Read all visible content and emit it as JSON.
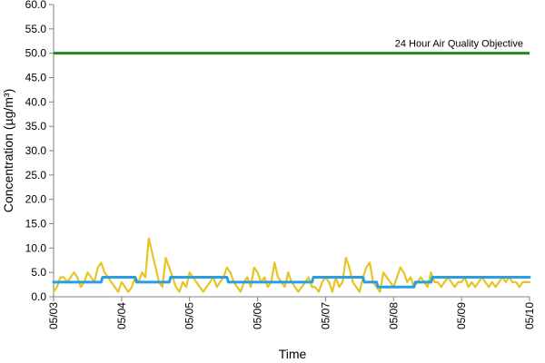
{
  "chart_data": {
    "type": "line",
    "xlabel": "Time",
    "ylabel": "Concentration (µg/m³)",
    "ylim": [
      0,
      60
    ],
    "y_ticks": [
      "0.0",
      "5.0",
      "10.0",
      "15.0",
      "20.0",
      "25.0",
      "30.0",
      "35.0",
      "40.0",
      "45.0",
      "50.0",
      "55.0",
      "60.0"
    ],
    "y_tick_values": [
      0,
      5,
      10,
      15,
      20,
      25,
      30,
      35,
      40,
      45,
      50,
      55,
      60
    ],
    "x_ticks": [
      "05/03",
      "05/04",
      "05/05",
      "05/06",
      "05/07",
      "05/08",
      "05/09",
      "05/10"
    ],
    "grid": false,
    "annotation": {
      "text": "24 Hour Air Quality Objective",
      "value": 50,
      "color": "#1f8a1f"
    },
    "series": [
      {
        "color": "#e8c423",
        "x_day_fraction": [
          0,
          0.05,
          0.1,
          0.15,
          0.2,
          0.25,
          0.3,
          0.35,
          0.4,
          0.45,
          0.5,
          0.55,
          0.6,
          0.65,
          0.7,
          0.75,
          0.8,
          0.85,
          0.9,
          0.95,
          1.0,
          1.05,
          1.1,
          1.15,
          1.2,
          1.25,
          1.3,
          1.35,
          1.4,
          1.45,
          1.5,
          1.55,
          1.6,
          1.65,
          1.7,
          1.75,
          1.8,
          1.85,
          1.9,
          1.95,
          2.0,
          2.05,
          2.1,
          2.15,
          2.2,
          2.25,
          2.3,
          2.35,
          2.4,
          2.45,
          2.5,
          2.55,
          2.6,
          2.65,
          2.7,
          2.75,
          2.8,
          2.85,
          2.9,
          2.95,
          3.0,
          3.05,
          3.1,
          3.15,
          3.2,
          3.25,
          3.3,
          3.35,
          3.4,
          3.45,
          3.5,
          3.55,
          3.6,
          3.65,
          3.7,
          3.75,
          3.8,
          3.85,
          3.9,
          3.95,
          4.0,
          4.05,
          4.1,
          4.15,
          4.2,
          4.25,
          4.3,
          4.35,
          4.4,
          4.45,
          4.5,
          4.55,
          4.6,
          4.65,
          4.7,
          4.75,
          4.8,
          4.85,
          4.9,
          4.95,
          5.0,
          5.05,
          5.1,
          5.15,
          5.2,
          5.25,
          5.3,
          5.35,
          5.4,
          5.45,
          5.5,
          5.55,
          5.6,
          5.65,
          5.7,
          5.75,
          5.8,
          5.85,
          5.9,
          5.95,
          6.0,
          6.05,
          6.1,
          6.15,
          6.2,
          6.25,
          6.3,
          6.35,
          6.4,
          6.45,
          6.5,
          6.55,
          6.6,
          6.65,
          6.7,
          6.75,
          6.8,
          6.85,
          6.9,
          6.95,
          7.0
        ],
        "values": [
          1,
          2,
          4,
          4,
          3,
          4,
          5,
          4,
          2,
          3,
          5,
          4,
          3,
          6,
          7,
          5,
          4,
          3,
          2,
          1,
          3,
          2,
          1,
          2,
          4,
          3,
          5,
          4,
          12,
          9,
          6,
          3,
          2,
          8,
          6,
          4,
          2,
          1,
          3,
          2,
          5,
          4,
          3,
          2,
          1,
          2,
          3,
          4,
          2,
          3,
          4,
          6,
          5,
          3,
          2,
          1,
          3,
          4,
          2,
          6,
          5,
          3,
          4,
          2,
          3,
          7,
          4,
          3,
          2,
          5,
          3,
          2,
          1,
          2,
          3,
          4,
          2,
          2,
          1,
          3,
          4,
          3,
          1,
          4,
          2,
          3,
          8,
          6,
          3,
          2,
          1,
          4,
          6,
          7,
          3,
          2,
          1,
          5,
          4,
          3,
          2,
          4,
          6,
          5,
          3,
          4,
          2,
          3,
          4,
          3,
          2,
          5,
          3,
          3,
          2,
          3,
          4,
          3,
          2,
          3,
          3,
          4,
          2,
          3,
          2,
          3,
          4,
          3,
          2,
          3,
          2,
          3,
          4,
          3,
          4,
          3,
          3,
          2,
          3,
          3,
          3
        ]
      },
      {
        "color": "#2a9ee0",
        "x_day_fraction": [
          0,
          0.7,
          0.72,
          1.2,
          1.22,
          1.7,
          1.72,
          2.55,
          2.57,
          3.8,
          3.82,
          4.55,
          4.57,
          4.75,
          4.77,
          5.3,
          5.32,
          5.55,
          5.57,
          7.0
        ],
        "values": [
          3,
          3,
          4,
          4,
          3,
          3,
          4,
          4,
          3,
          3,
          4,
          4,
          3,
          3,
          2,
          2,
          3,
          3,
          4,
          4
        ]
      }
    ]
  }
}
